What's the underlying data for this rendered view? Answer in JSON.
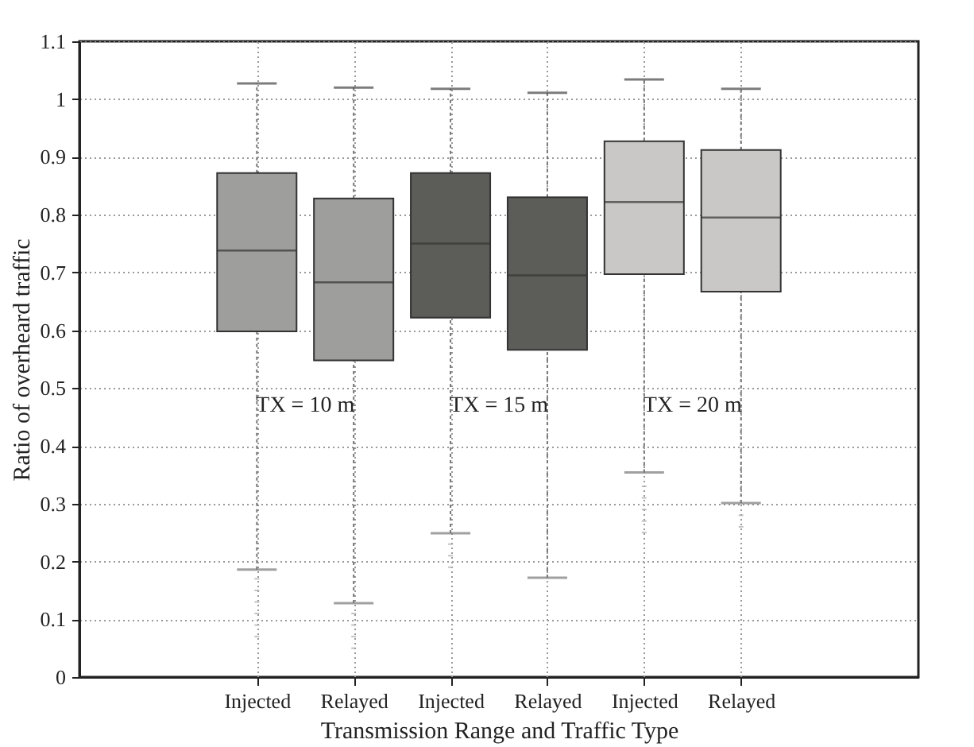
{
  "chart_data": {
    "type": "box",
    "xlabel": "Transmission Range and Traffic Type",
    "ylabel": "Ratio of overheard traffic",
    "categories": [
      "Injected",
      "Relayed",
      "Injected",
      "Relayed",
      "Injected",
      "Relayed"
    ],
    "colors": [
      "#9e9e9c",
      "#9e9e9c",
      "#5c5d58",
      "#5c5d58",
      "#c9c8c6",
      "#c9c8c6"
    ],
    "boxes": [
      {
        "low": 0.186,
        "q1": 0.598,
        "median": 0.738,
        "q3": 0.872,
        "high": 1.027,
        "outliers": [
          0.17,
          0.15,
          0.13,
          0.11,
          0.09,
          0.07
        ]
      },
      {
        "low": 0.128,
        "q1": 0.548,
        "median": 0.683,
        "q3": 0.828,
        "high": 1.02,
        "outliers": [
          0.11,
          0.09,
          0.07,
          0.05
        ]
      },
      {
        "low": 0.249,
        "q1": 0.622,
        "median": 0.75,
        "q3": 0.872,
        "high": 1.018,
        "outliers": [
          0.23,
          0.21,
          0.19
        ]
      },
      {
        "low": 0.172,
        "q1": 0.566,
        "median": 0.695,
        "q3": 0.83,
        "high": 1.011
      },
      {
        "low": 0.354,
        "q1": 0.697,
        "median": 0.822,
        "q3": 0.927,
        "high": 1.034,
        "outliers": [
          0.33,
          0.31,
          0.29,
          0.27,
          0.25
        ]
      },
      {
        "low": 0.301,
        "q1": 0.667,
        "median": 0.795,
        "q3": 0.912,
        "high": 1.018,
        "outliers": [
          0.28,
          0.26
        ]
      }
    ],
    "annotations": [
      "TX = 10 m",
      "TX = 15 m",
      "TX = 20 m"
    ],
    "ylim": [
      0,
      1.1
    ],
    "yticks": [
      0,
      0.1,
      0.2,
      0.3,
      0.4,
      0.5,
      0.6,
      0.7,
      0.8,
      0.9,
      1,
      1.1
    ],
    "grid": true
  }
}
